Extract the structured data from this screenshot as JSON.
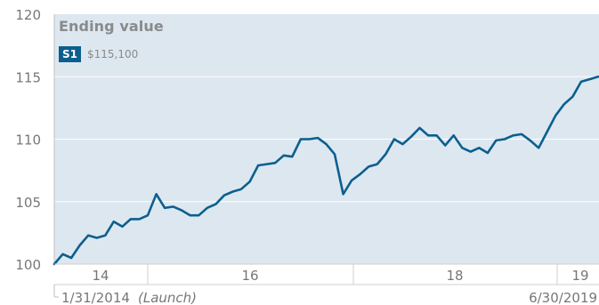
{
  "chart_data": {
    "type": "line",
    "legend": {
      "title": "Ending value",
      "entries": [
        {
          "badge": "S1",
          "value": "$115,100"
        }
      ]
    },
    "yaxis": {
      "ticks": [
        100,
        105,
        110,
        115,
        120
      ],
      "ylim": [
        100,
        120
      ]
    },
    "xaxis": {
      "year_labels": [
        "14",
        "16",
        "18",
        "19"
      ],
      "start_label": "1/31/2014",
      "start_note": "(Launch)",
      "end_label": "6/30/2019"
    },
    "grid": true,
    "series": [
      {
        "values": [
          100.0,
          100.8,
          100.5,
          101.5,
          102.3,
          102.1,
          102.3,
          103.4,
          103.0,
          103.6,
          103.6,
          103.9,
          105.6,
          104.5,
          104.6,
          104.3,
          103.9,
          103.9,
          104.5,
          104.8,
          105.5,
          105.8,
          106.0,
          106.6,
          107.9,
          108.0,
          108.1,
          108.7,
          108.6,
          110.0,
          110.0,
          110.1,
          109.6,
          108.8,
          105.6,
          106.7,
          107.2,
          107.8,
          108.0,
          108.8,
          110.0,
          109.6,
          110.2,
          110.9,
          110.3,
          110.3,
          109.5,
          110.3,
          109.3,
          109.0,
          109.3,
          108.9,
          109.9,
          110.0,
          110.3,
          110.4,
          109.9,
          109.3,
          110.6,
          111.9,
          112.8,
          113.4,
          114.6,
          114.8,
          115.0
        ],
        "color": "#0b5f8e"
      }
    ]
  }
}
